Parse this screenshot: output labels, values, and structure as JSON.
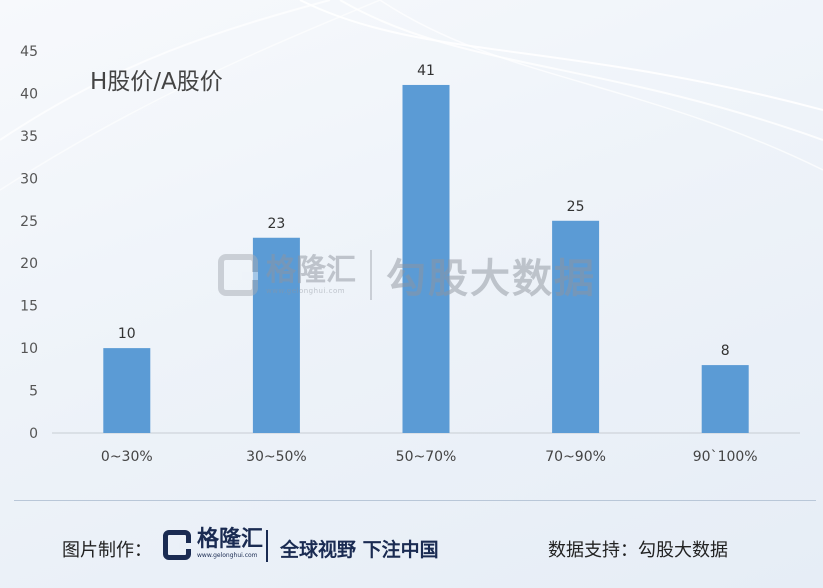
{
  "chart_data": {
    "type": "bar",
    "title": "H股价/A股价",
    "categories": [
      "0~30%",
      "30~50%",
      "50~70%",
      "70~90%",
      "90`100%"
    ],
    "values": [
      10,
      23,
      41,
      25,
      8
    ],
    "ylim": [
      0,
      45
    ],
    "yticks": [
      0,
      5,
      10,
      15,
      20,
      25,
      30,
      35,
      40,
      45
    ],
    "xlabel": "",
    "ylabel": "",
    "grid": false,
    "bar_color": "#5b9bd5"
  },
  "watermark": {
    "brand": "格隆汇",
    "url": "www.gelonghui.com",
    "text": "勾股大数据"
  },
  "footer": {
    "label": "图片制作：",
    "brand": "格隆汇",
    "url": "www.gelonghui.com",
    "slogan": "全球视野 下注中国",
    "source": "数据支持：勾股大数据"
  }
}
